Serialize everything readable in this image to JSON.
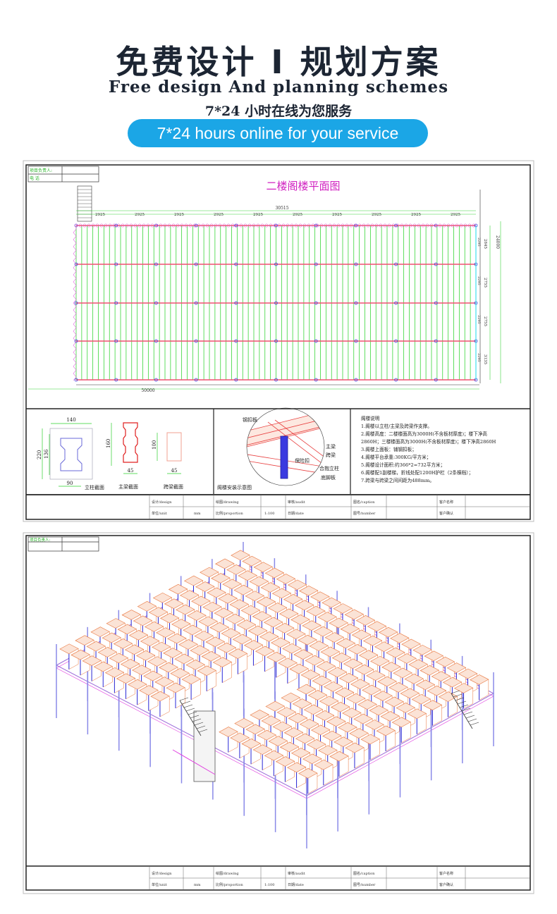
{
  "header": {
    "title_cn": "免费设计 I 规划方案",
    "title_en": "Free design And planning schemes",
    "service_cn": "7*24 小时在线为您服务",
    "service_en": "7*24 hours online for your service",
    "accent_color": "#1ba6e6"
  },
  "plan_drawing": {
    "corner_box": {
      "row1": "项目负责人:",
      "row2": "电  话"
    },
    "title": "二楼阁楼平面图",
    "dim_top_spans": [
      "2925",
      "2925",
      "2925",
      "2925",
      "2925",
      "2925",
      "2925",
      "2925",
      "2925",
      "2925"
    ],
    "dim_top_total": "30515",
    "dim_bottom_total": "50000",
    "dim_right_total": "24000",
    "dim_right_spans": [
      "2845",
      "2755",
      "2755",
      "3135"
    ],
    "dim_right_inner": [
      "2295",
      "2295",
      "2295",
      "2295"
    ],
    "sections": {
      "column_dims": {
        "w": "140",
        "h_outer": "220",
        "h_inner": "136",
        "base": "90"
      },
      "column_label": "立柱截面",
      "main_beam_dims": {
        "h": "160",
        "w": "45"
      },
      "main_beam_label": "主梁截面",
      "span_beam_dims": {
        "h": "100",
        "w": "45"
      },
      "span_beam_label": "跨梁截面"
    },
    "install": {
      "label": "阁楼安装示意图",
      "callouts": [
        "钢扣板",
        "主梁",
        "跨梁",
        "保险扣",
        "合抱立柱",
        "底脚板"
      ]
    },
    "notes": {
      "heading": "阁楼说明",
      "lines": [
        "1.阁楼以立柱/主梁及跨梁作支撑。",
        "2.阁楼高度：二楼楼面高为3000H(不含板材厚度)；楼下净高",
        "2860H；三楼楼面高为3000H(不含板材厚度)；楼下净高2860H",
        "3.阁楼上面板：铺钢扣板；",
        "4.阁楼平台承重:300KG/平方米；",
        "5.阁楼设计面积:约366*2=732平方米；",
        "6.阁楼配1副楼梯，折线处配1200H护栏（2条横档）；",
        "7.跨梁与跨梁之间间距为488mm。"
      ]
    }
  },
  "title_block": {
    "design": "设计/design",
    "drawing": "绘图/drawing",
    "audit": "审核/audit",
    "caption": "图名/caption",
    "client_name": "客户名称",
    "unit": "单位/unit",
    "unit_value": "mm",
    "proportion": "比例/proportion",
    "proportion_value": "1:100",
    "date": "日期/date",
    "number": "图号/number",
    "client_confirm": "客户确认"
  },
  "iso_drawing": {
    "corner_box": {
      "row1": "项目负责人:"
    }
  }
}
